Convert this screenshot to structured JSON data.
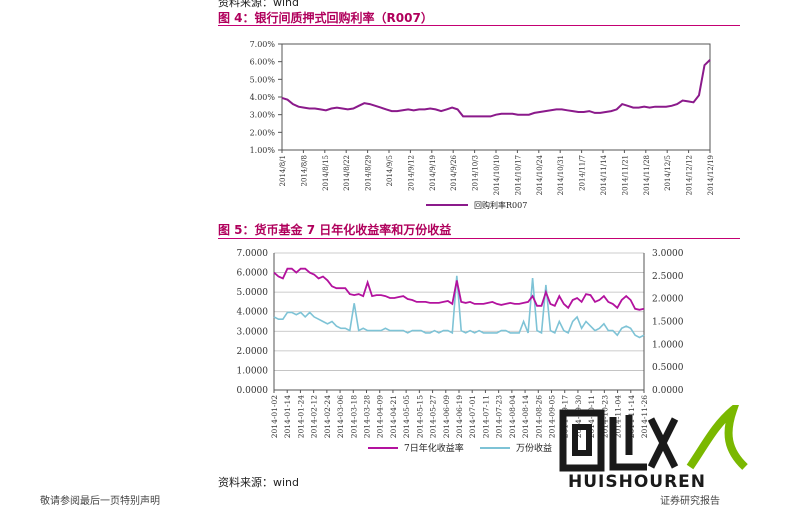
{
  "page": {
    "source_top": "资料来源：wind",
    "source_bottom": "资料来源：wind",
    "footer_left": "敬请参阅最后一页特别声明",
    "footer_right": "证券研究报告",
    "watermark_text": "HUISHOUREN"
  },
  "chart_data": [
    {
      "type": "line",
      "title": "图 4：银行间质押式回购利率（R007）",
      "y_ticks": [
        "7.00%",
        "6.00%",
        "5.00%",
        "4.00%",
        "3.00%",
        "2.00%",
        "1.00%"
      ],
      "ylim": [
        1,
        7
      ],
      "x_ticks": [
        "2014/8/1",
        "2014/8/8",
        "2014/8/15",
        "2014/8/22",
        "2014/8/29",
        "2014/9/5",
        "2014/9/12",
        "2014/9/19",
        "2014/9/26",
        "2014/10/3",
        "2014/10/10",
        "2014/10/17",
        "2014/10/24",
        "2014/10/31",
        "2014/11/7",
        "2014/11/14",
        "2014/11/21",
        "2014/11/28",
        "2014/12/5",
        "2014/12/12",
        "2014/12/19"
      ],
      "series": [
        {
          "name": "回购利率R007",
          "color": "#8b1a8b",
          "values": [
            3.95,
            3.85,
            3.6,
            3.45,
            3.4,
            3.35,
            3.35,
            3.3,
            3.25,
            3.35,
            3.4,
            3.35,
            3.3,
            3.35,
            3.5,
            3.65,
            3.6,
            3.5,
            3.4,
            3.3,
            3.2,
            3.2,
            3.25,
            3.3,
            3.25,
            3.3,
            3.3,
            3.35,
            3.3,
            3.2,
            3.3,
            3.4,
            3.3,
            2.9,
            2.9,
            2.9,
            2.9,
            2.9,
            2.9,
            3.0,
            3.05,
            3.05,
            3.05,
            3.0,
            3.0,
            3.0,
            3.1,
            3.15,
            3.2,
            3.25,
            3.3,
            3.3,
            3.25,
            3.2,
            3.15,
            3.15,
            3.2,
            3.1,
            3.1,
            3.15,
            3.2,
            3.3,
            3.6,
            3.5,
            3.4,
            3.4,
            3.45,
            3.4,
            3.45,
            3.45,
            3.45,
            3.5,
            3.6,
            3.8,
            3.75,
            3.7,
            4.1,
            5.8,
            6.1
          ]
        }
      ]
    },
    {
      "type": "line",
      "title": "图 5：货币基金 7 日年化收益率和万份收益",
      "y_ticks_left": [
        "7.0000",
        "6.0000",
        "5.0000",
        "4.0000",
        "3.0000",
        "2.0000",
        "1.0000",
        "0.0000"
      ],
      "y_ticks_right": [
        "3.0000",
        "2.5000",
        "2.0000",
        "1.5000",
        "1.0000",
        "0.5000",
        "0.0000"
      ],
      "ylim_left": [
        0,
        7
      ],
      "ylim_right": [
        0,
        3
      ],
      "x_ticks": [
        "2014-01-02",
        "2014-01-14",
        "2014-01-24",
        "2014-02-12",
        "2014-02-24",
        "2014-03-06",
        "2014-03-18",
        "2014-03-28",
        "2014-04-09",
        "2014-04-21",
        "2014-05-05",
        "2014-05-15",
        "2014-05-27",
        "2014-06-09",
        "2014-06-19",
        "2014-07-01",
        "2014-07-11",
        "2014-07-23",
        "2014-08-04",
        "2014-08-14",
        "2014-08-26",
        "2014-09-05",
        "2014-09-17",
        "2014-09-30",
        "2014-10-11",
        "2014-10-23",
        "2014-11-04",
        "2014-11-14",
        "2014-11-26"
      ],
      "series": [
        {
          "name": "7日年化收益率",
          "axis": "left",
          "color": "#b3129e",
          "values": [
            6.0,
            5.8,
            5.7,
            6.2,
            6.2,
            6.0,
            6.2,
            6.2,
            6.0,
            5.9,
            5.7,
            5.8,
            5.6,
            5.3,
            5.2,
            5.2,
            5.2,
            4.9,
            4.85,
            4.9,
            4.8,
            5.5,
            4.8,
            4.85,
            4.85,
            4.8,
            4.7,
            4.7,
            4.75,
            4.8,
            4.65,
            4.6,
            4.5,
            4.5,
            4.5,
            4.45,
            4.45,
            4.45,
            4.5,
            4.55,
            4.4,
            5.6,
            4.5,
            4.45,
            4.5,
            4.4,
            4.4,
            4.4,
            4.45,
            4.5,
            4.4,
            4.35,
            4.4,
            4.45,
            4.4,
            4.4,
            4.45,
            4.5,
            4.8,
            4.3,
            4.3,
            5.0,
            4.4,
            4.3,
            4.8,
            4.4,
            4.2,
            4.6,
            4.7,
            4.5,
            4.9,
            4.85,
            4.5,
            4.6,
            4.8,
            4.5,
            4.4,
            4.2,
            4.6,
            4.8,
            4.6,
            4.15,
            4.1,
            4.15
          ]
        },
        {
          "name": "万份收益",
          "axis": "right",
          "color": "#7ec3d6",
          "values": [
            1.6,
            1.55,
            1.55,
            1.7,
            1.7,
            1.65,
            1.7,
            1.6,
            1.7,
            1.6,
            1.55,
            1.5,
            1.45,
            1.5,
            1.4,
            1.35,
            1.35,
            1.3,
            1.9,
            1.3,
            1.35,
            1.3,
            1.3,
            1.3,
            1.3,
            1.35,
            1.3,
            1.3,
            1.3,
            1.3,
            1.25,
            1.3,
            1.3,
            1.3,
            1.25,
            1.25,
            1.3,
            1.25,
            1.3,
            1.3,
            1.25,
            2.5,
            1.3,
            1.25,
            1.3,
            1.25,
            1.3,
            1.25,
            1.25,
            1.25,
            1.25,
            1.3,
            1.3,
            1.25,
            1.25,
            1.25,
            1.5,
            1.25,
            2.45,
            1.3,
            1.25,
            2.3,
            1.3,
            1.25,
            1.5,
            1.3,
            1.25,
            1.5,
            1.6,
            1.35,
            1.5,
            1.4,
            1.3,
            1.35,
            1.45,
            1.3,
            1.3,
            1.2,
            1.35,
            1.4,
            1.35,
            1.2,
            1.15,
            1.2
          ]
        }
      ]
    }
  ]
}
